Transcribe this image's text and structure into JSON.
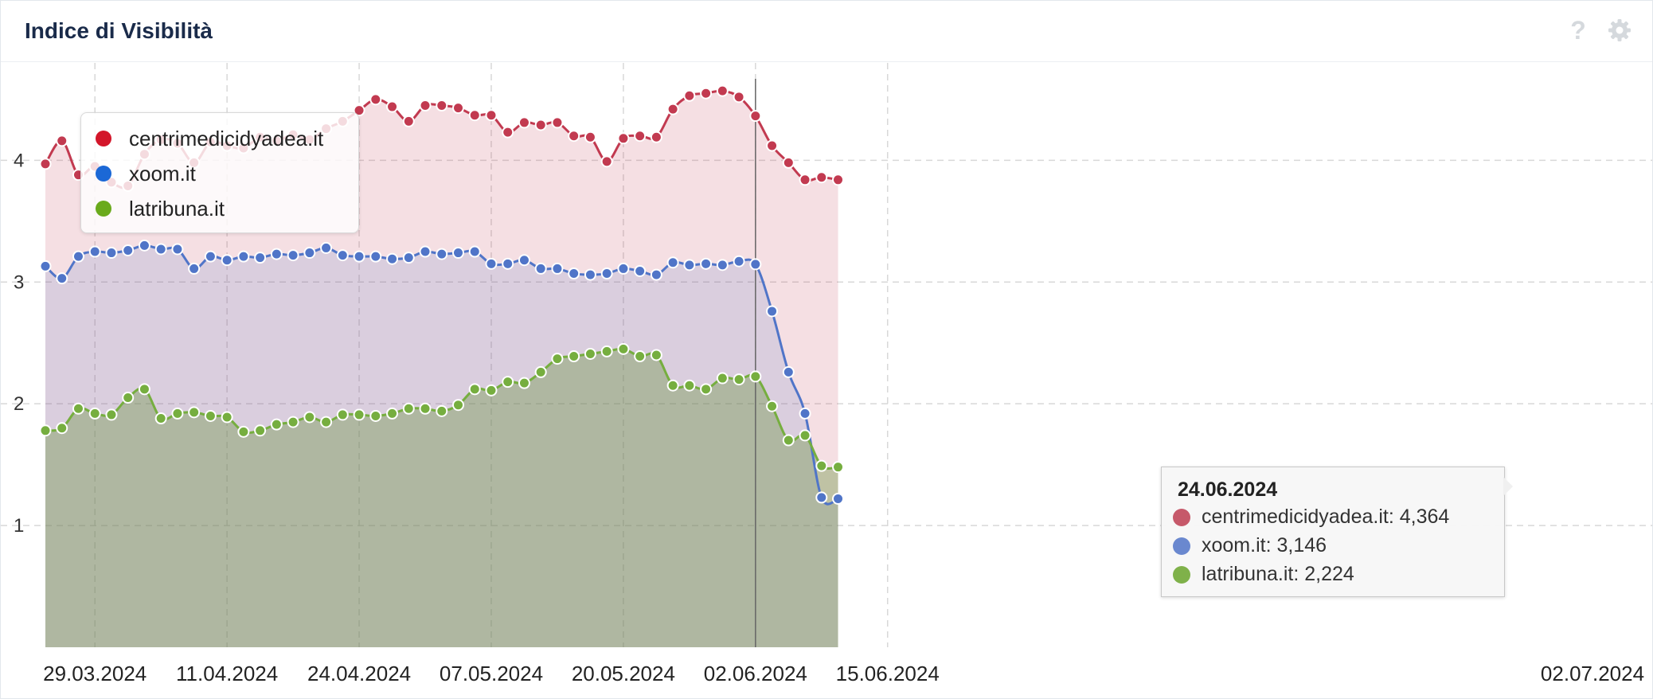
{
  "header": {
    "title": "Indice di Visibilità",
    "help_label": "?"
  },
  "colors": {
    "red": "#c23a50",
    "blue": "#5075c8",
    "green": "#76ae3f",
    "legend_red": "#d3162a",
    "legend_blue": "#1b68d6",
    "legend_green": "#6aaa1c"
  },
  "icons": {
    "help": "question-mark-icon",
    "settings": "gear-icon"
  },
  "chart_data": {
    "type": "area",
    "x_ticks": [
      "29.03.2024",
      "11.04.2024",
      "24.04.2024",
      "07.05.2024",
      "20.05.2024",
      "02.06.2024",
      "15.06.2024",
      "02.07.2024"
    ],
    "y_ticks": [
      "1",
      "2",
      "3",
      "4"
    ],
    "ylim": [
      0,
      4.8
    ],
    "xlim": [
      -2.7,
      97.3
    ],
    "grid": true,
    "legend_position": "top-left",
    "series": [
      {
        "name": "centrimedicidyadea.it",
        "color": "#c23a50",
        "values": [
          3.97,
          4.16,
          3.88,
          3.95,
          3.82,
          3.79,
          4.05,
          4.17,
          4.14,
          3.98,
          4.15,
          4.12,
          4.1,
          4.19,
          4.16,
          4.21,
          4.17,
          4.26,
          4.32,
          4.41,
          4.5,
          4.44,
          4.32,
          4.45,
          4.45,
          4.43,
          4.37,
          4.37,
          4.23,
          4.31,
          4.29,
          4.31,
          4.2,
          4.19,
          3.99,
          4.18,
          4.2,
          4.19,
          4.42,
          4.53,
          4.55,
          4.57,
          4.52,
          4.364,
          4.12,
          3.98,
          3.84,
          3.86,
          3.84
        ]
      },
      {
        "name": "xoom.it",
        "color": "#5075c8",
        "values": [
          3.13,
          3.03,
          3.21,
          3.25,
          3.24,
          3.26,
          3.3,
          3.27,
          3.27,
          3.11,
          3.21,
          3.18,
          3.21,
          3.2,
          3.23,
          3.22,
          3.24,
          3.28,
          3.22,
          3.21,
          3.21,
          3.19,
          3.2,
          3.25,
          3.23,
          3.24,
          3.25,
          3.15,
          3.15,
          3.18,
          3.11,
          3.11,
          3.07,
          3.06,
          3.07,
          3.11,
          3.09,
          3.06,
          3.16,
          3.14,
          3.15,
          3.14,
          3.17,
          3.146,
          2.76,
          2.26,
          1.92,
          1.23,
          1.22
        ]
      },
      {
        "name": "latribuna.it",
        "color": "#76ae3f",
        "values": [
          1.78,
          1.8,
          1.96,
          1.92,
          1.91,
          2.05,
          2.12,
          1.88,
          1.92,
          1.93,
          1.9,
          1.89,
          1.77,
          1.78,
          1.83,
          1.85,
          1.89,
          1.85,
          1.91,
          1.91,
          1.9,
          1.92,
          1.96,
          1.96,
          1.94,
          1.99,
          2.12,
          2.11,
          2.18,
          2.17,
          2.26,
          2.37,
          2.39,
          2.41,
          2.43,
          2.45,
          2.39,
          2.4,
          2.15,
          2.15,
          2.12,
          2.21,
          2.2,
          2.224,
          1.98,
          1.7,
          1.74,
          1.49,
          1.48
        ]
      }
    ],
    "tooltip": {
      "date": "24.06.2024",
      "index": 43,
      "rows": [
        {
          "text": "centrimedicidyadea.it: 4,364",
          "color": "#c23a50"
        },
        {
          "text": "xoom.it: 3,146",
          "color": "#5075c8"
        },
        {
          "text": "latribuna.it: 2,224",
          "color": "#76ae3f"
        }
      ]
    }
  }
}
